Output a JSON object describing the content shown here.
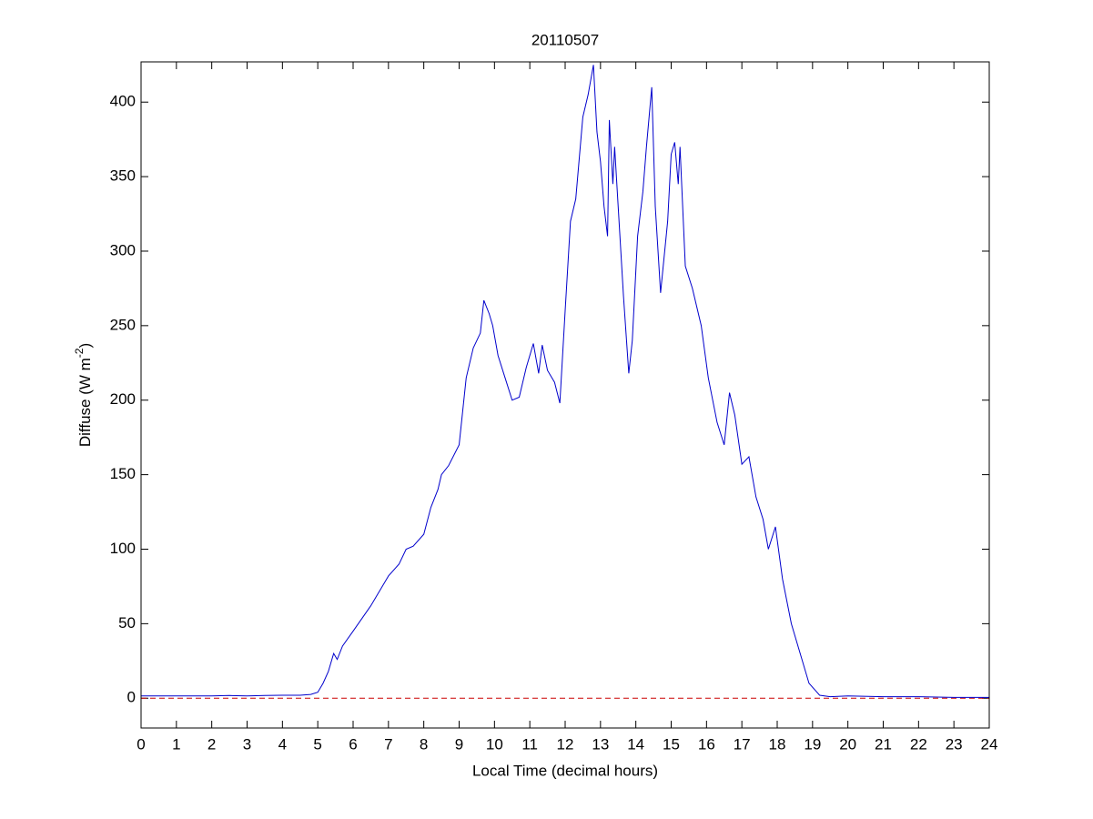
{
  "chart_data": {
    "type": "line",
    "title": "20110507",
    "xlabel": "Local Time (decimal hours)",
    "ylabel": {
      "text": "Diffuse (W m",
      "superscript": "-2",
      "suffix": ")"
    },
    "xlim": [
      0,
      24
    ],
    "ylim": [
      -20,
      427
    ],
    "xticks": [
      0,
      1,
      2,
      3,
      4,
      5,
      6,
      7,
      8,
      9,
      10,
      11,
      12,
      13,
      14,
      15,
      16,
      17,
      18,
      19,
      20,
      21,
      22,
      23,
      24
    ],
    "yticks": [
      0,
      50,
      100,
      150,
      200,
      250,
      300,
      350,
      400
    ],
    "grid": false,
    "reference_line": {
      "value": 0,
      "color": "#cc0000"
    },
    "x": [
      0,
      0.5,
      1,
      1.5,
      2,
      2.5,
      3,
      3.5,
      4,
      4.5,
      4.8,
      5,
      5.15,
      5.3,
      5.45,
      5.55,
      5.7,
      6,
      6.5,
      7,
      7.3,
      7.5,
      7.7,
      8,
      8.2,
      8.4,
      8.5,
      8.7,
      9,
      9.2,
      9.4,
      9.6,
      9.7,
      9.85,
      9.95,
      10.1,
      10.3,
      10.5,
      10.7,
      10.9,
      11.1,
      11.25,
      11.35,
      11.5,
      11.7,
      11.85,
      12,
      12.15,
      12.3,
      12.5,
      12.65,
      12.8,
      12.9,
      13,
      13.1,
      13.2,
      13.25,
      13.35,
      13.4,
      13.5,
      13.65,
      13.8,
      13.9,
      14.05,
      14.2,
      14.3,
      14.45,
      14.55,
      14.7,
      14.9,
      15,
      15.1,
      15.2,
      15.25,
      15.4,
      15.6,
      15.85,
      16.05,
      16.3,
      16.5,
      16.65,
      16.8,
      17,
      17.2,
      17.4,
      17.6,
      17.75,
      17.95,
      18.15,
      18.4,
      18.65,
      18.9,
      19.2,
      19.5,
      20,
      21,
      22,
      23,
      24
    ],
    "series": [
      {
        "name": "Diffuse",
        "color": "#0000cc",
        "values": [
          1.5,
          1.5,
          1.5,
          1.5,
          1.5,
          1.8,
          1.5,
          1.8,
          2,
          2,
          2.5,
          4,
          10,
          18,
          30,
          26,
          35,
          45,
          62,
          82,
          90,
          100,
          102,
          110,
          128,
          140,
          150,
          156,
          170,
          215,
          235,
          245,
          267,
          258,
          250,
          230,
          215,
          200,
          202,
          222,
          238,
          218,
          237,
          220,
          212,
          198,
          260,
          320,
          335,
          390,
          405,
          425,
          380,
          360,
          330,
          310,
          388,
          345,
          370,
          330,
          270,
          218,
          240,
          310,
          340,
          370,
          410,
          330,
          272,
          320,
          365,
          373,
          345,
          370,
          290,
          275,
          250,
          215,
          185,
          170,
          205,
          190,
          157,
          162,
          135,
          120,
          100,
          115,
          80,
          50,
          30,
          10,
          2,
          1,
          1.5,
          1,
          1,
          0.5,
          0.5
        ]
      }
    ]
  }
}
